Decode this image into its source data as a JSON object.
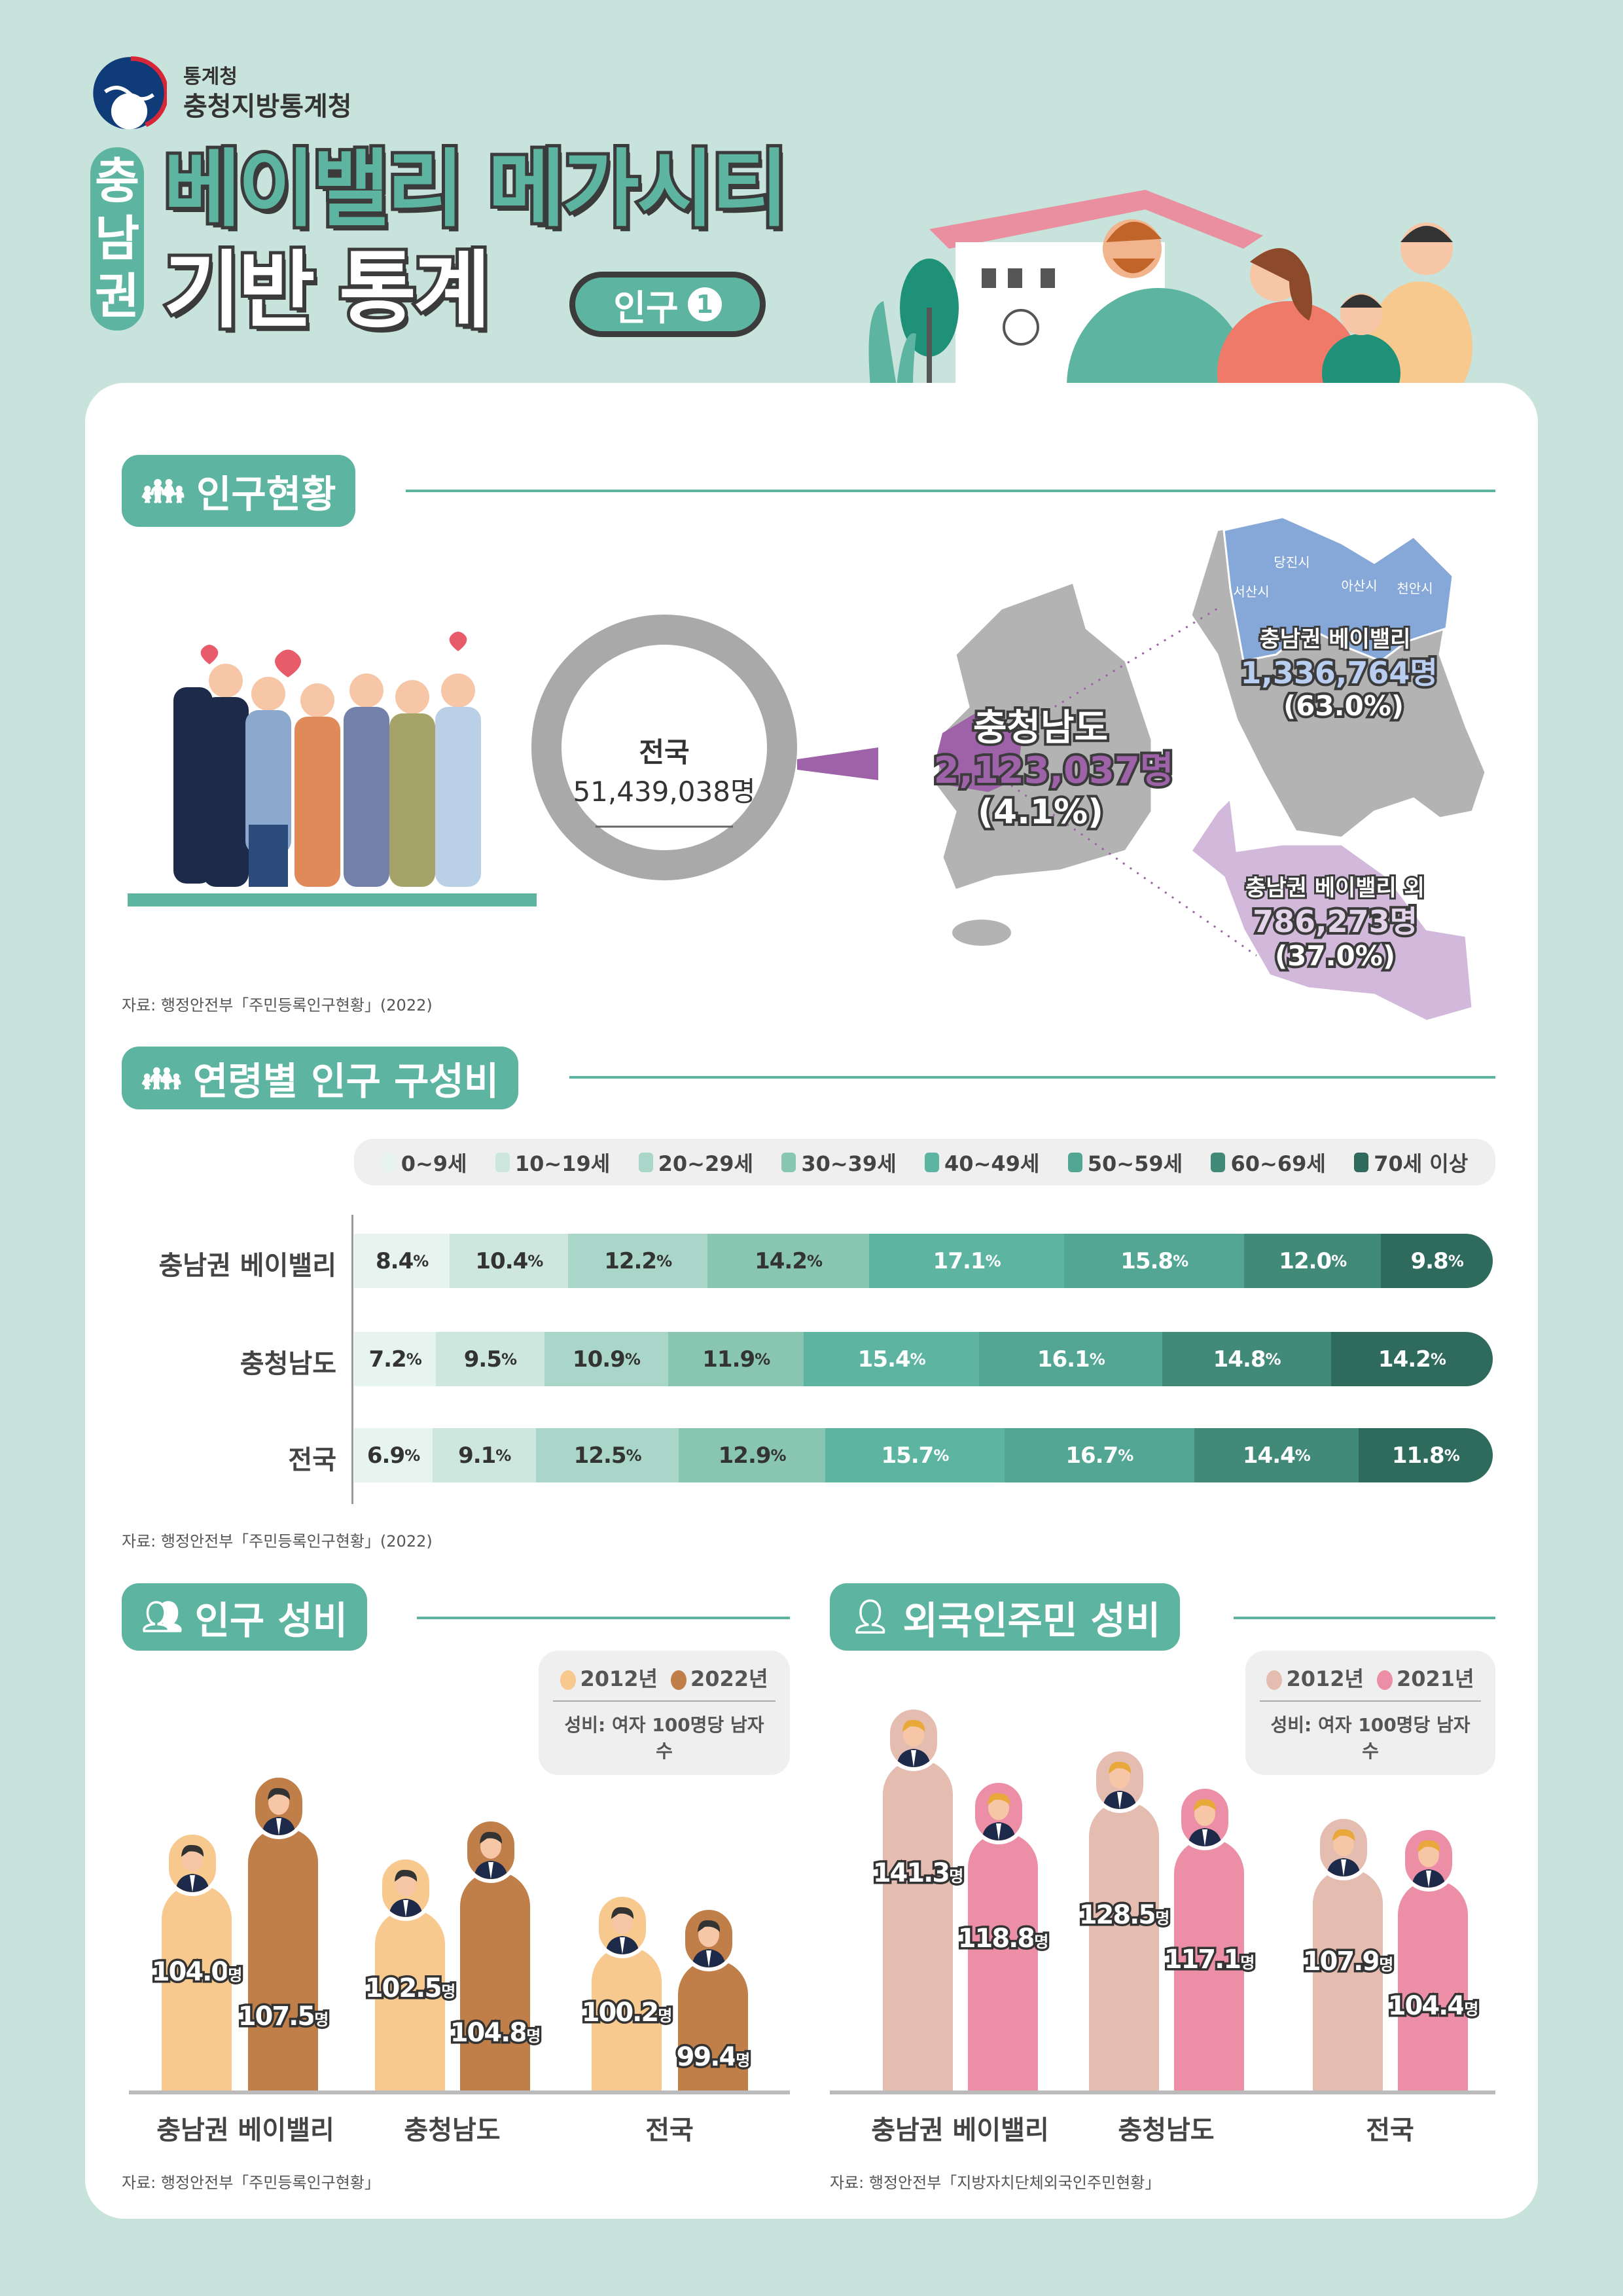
{
  "header": {
    "org_small": "통계청",
    "org": "충청지방통계청",
    "title_vertical": [
      "충",
      "남",
      "권"
    ],
    "title_line1": "베이밸리 메가시티",
    "title_line2": "기반 통계",
    "badge_label": "인구",
    "badge_number": "1"
  },
  "colors": {
    "background": "#c8e2dc",
    "accent": "#5db5a1",
    "chungnam_purple": "#9e62a8",
    "bayvalley_blue": "#86a8d9",
    "other_lavender": "#d2b8da",
    "map_gray": "#b3b3b3"
  },
  "section1": {
    "title": "인구현황",
    "icon": "family-icon",
    "national_label": "전국",
    "national_value": "51,439,038명",
    "chungnam_label": "충청남도",
    "chungnam_value": "2,123,037명",
    "chungnam_pct": "(4.1%)",
    "bayvalley_label": "충남권 베이밸리",
    "bayvalley_value": "1,336,764명",
    "bayvalley_pct": "(63.0%)",
    "other_label": "충남권 베이밸리 외",
    "other_value": "786,273명",
    "other_pct": "(37.0%)",
    "cities": [
      "당진시",
      "서산시",
      "아산시",
      "천안시"
    ],
    "source": "자료: 행정안전부「주민등록인구현황」(2022)"
  },
  "section2": {
    "title": "연령별 인구 구성비",
    "icon": "family-icon",
    "source": "자료: 행정안전부「주민등록인구현황」(2022)"
  },
  "section3": {
    "title": "인구 성비",
    "icon": "people-icon",
    "unit_note": "성비: 여자 100명당 남자 수",
    "source": "자료: 행정안전부「주민등록인구현황」"
  },
  "section4": {
    "title": "외국인주민 성비",
    "icon": "foreigner-icon",
    "unit_note": "성비: 여자 100명당 남자 수",
    "source": "자료: 행정안전부「지방자치단체외국인주민현황」"
  },
  "chart_data": [
    {
      "type": "bar",
      "orientation": "horizontal-stacked",
      "title": "연령별 인구 구성비",
      "categories": [
        "충남권 베이밸리",
        "충청남도",
        "전국"
      ],
      "unit": "%",
      "series": [
        {
          "name": "0~9세",
          "color": "#e7f3ef",
          "values": [
            8.4,
            7.2,
            6.9
          ]
        },
        {
          "name": "10~19세",
          "color": "#cde6de",
          "values": [
            10.4,
            9.5,
            9.1
          ]
        },
        {
          "name": "20~29세",
          "color": "#a9d6c8",
          "values": [
            12.2,
            10.9,
            12.5
          ]
        },
        {
          "name": "30~39세",
          "color": "#89c6b2",
          "values": [
            14.2,
            11.9,
            12.9
          ]
        },
        {
          "name": "40~49세",
          "color": "#5db5a1",
          "values": [
            17.1,
            15.4,
            15.7
          ]
        },
        {
          "name": "50~59세",
          "color": "#52a693",
          "values": [
            15.8,
            16.1,
            16.7
          ]
        },
        {
          "name": "60~69세",
          "color": "#428a78",
          "values": [
            12.0,
            14.8,
            14.4
          ]
        },
        {
          "name": "70세 이상",
          "color": "#2f6b5c",
          "values": [
            9.8,
            14.2,
            11.8
          ]
        }
      ],
      "legend": "top"
    },
    {
      "type": "bar",
      "title": "인구 성비",
      "categories": [
        "충남권 베이밸리",
        "충청남도",
        "전국"
      ],
      "unit": "명",
      "series": [
        {
          "name": "2012년",
          "color": "#f8c98f",
          "values": [
            104.0,
            102.5,
            100.2
          ]
        },
        {
          "name": "2022년",
          "color": "#c07f48",
          "values": [
            107.5,
            104.8,
            99.4
          ]
        }
      ],
      "legend": "top-right"
    },
    {
      "type": "bar",
      "title": "외국인주민 성비",
      "categories": [
        "충남권 베이밸리",
        "충청남도",
        "전국"
      ],
      "unit": "명",
      "series": [
        {
          "name": "2012년",
          "color": "#e5bdb0",
          "values": [
            141.3,
            128.5,
            107.9
          ]
        },
        {
          "name": "2021년",
          "color": "#ec8fa6",
          "values": [
            118.8,
            117.1,
            104.4
          ]
        }
      ],
      "legend": "top-right"
    }
  ]
}
